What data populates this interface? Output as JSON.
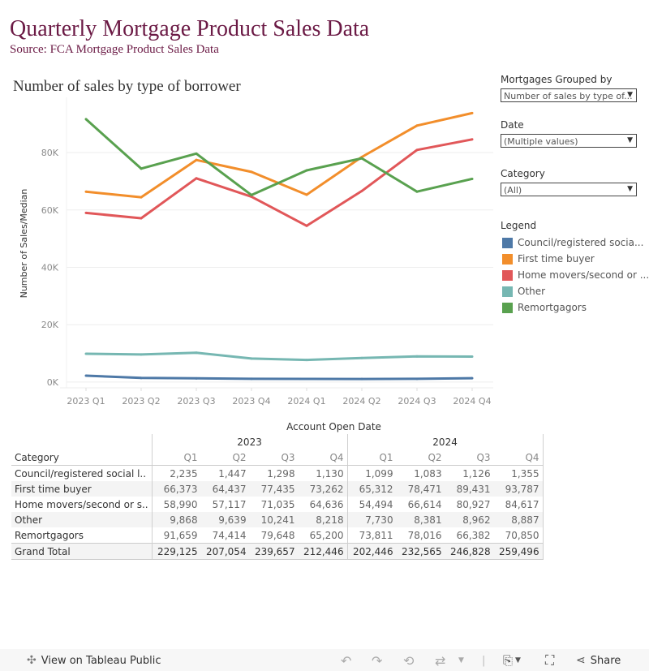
{
  "dashboard": {
    "title": "Quarterly Mortgage Product Sales Data",
    "subtitle": "Source: FCA Mortgage Product Sales Data",
    "chart_title": "Number of sales by type of borrower"
  },
  "controls": {
    "grouped_by": {
      "label": "Mortgages Grouped by",
      "value": "Number of sales by type of..."
    },
    "date": {
      "label": "Date",
      "value": "(Multiple values)"
    },
    "category": {
      "label": "Category",
      "value": "(All)"
    }
  },
  "legend": {
    "title": "Legend",
    "items": [
      {
        "label": "Council/registered socia...",
        "color": "#4e79a7"
      },
      {
        "label": "First time buyer",
        "color": "#f28e2b"
      },
      {
        "label": "Home movers/second or ...",
        "color": "#e15759"
      },
      {
        "label": "Other",
        "color": "#76b7b2"
      },
      {
        "label": "Remortgagors",
        "color": "#59a14f"
      }
    ]
  },
  "chart_data": {
    "type": "line",
    "title": "Number of sales by type of borrower",
    "xlabel": "",
    "ylabel": "Number of Sales/Median",
    "x": [
      "2023 Q1",
      "2023 Q2",
      "2023 Q3",
      "2023 Q4",
      "2024 Q1",
      "2024 Q2",
      "2024 Q3",
      "2024 Q4"
    ],
    "yticks": [
      0,
      20000,
      40000,
      60000,
      80000
    ],
    "ytick_labels": [
      "0K",
      "20K",
      "40K",
      "60K",
      "80K"
    ],
    "ylim": [
      -2000,
      97000
    ],
    "grid": true,
    "legend_position": "right",
    "series": [
      {
        "name": "Council/registered social landlord",
        "color": "#4e79a7",
        "values": [
          2235,
          1447,
          1298,
          1130,
          1099,
          1083,
          1126,
          1355
        ]
      },
      {
        "name": "First time buyer",
        "color": "#f28e2b",
        "values": [
          66373,
          64437,
          77435,
          73262,
          65312,
          78471,
          89431,
          93787
        ]
      },
      {
        "name": "Home movers/second or subsequent buyers",
        "color": "#e15759",
        "values": [
          58990,
          57117,
          71035,
          64636,
          54494,
          66614,
          80927,
          84617
        ]
      },
      {
        "name": "Other",
        "color": "#76b7b2",
        "values": [
          9868,
          9639,
          10241,
          8218,
          7730,
          8381,
          8962,
          8887
        ]
      },
      {
        "name": "Remortgagors",
        "color": "#59a14f",
        "values": [
          91659,
          74414,
          79648,
          65200,
          73811,
          78016,
          66382,
          70850
        ]
      }
    ]
  },
  "table": {
    "header": "Account Open Date",
    "category_header": "Category",
    "years": [
      "2023",
      "2024"
    ],
    "quarters": [
      "Q1",
      "Q2",
      "Q3",
      "Q4",
      "Q1",
      "Q2",
      "Q3",
      "Q4"
    ],
    "rows": [
      {
        "category": "Council/registered social l..",
        "values": [
          "2,235",
          "1,447",
          "1,298",
          "1,130",
          "1,099",
          "1,083",
          "1,126",
          "1,355"
        ]
      },
      {
        "category": "First time buyer",
        "values": [
          "66,373",
          "64,437",
          "77,435",
          "73,262",
          "65,312",
          "78,471",
          "89,431",
          "93,787"
        ]
      },
      {
        "category": "Home movers/second or s..",
        "values": [
          "58,990",
          "57,117",
          "71,035",
          "64,636",
          "54,494",
          "66,614",
          "80,927",
          "84,617"
        ]
      },
      {
        "category": "Other",
        "values": [
          "9,868",
          "9,639",
          "10,241",
          "8,218",
          "7,730",
          "8,381",
          "8,962",
          "8,887"
        ]
      },
      {
        "category": "Remortgagors",
        "values": [
          "91,659",
          "74,414",
          "79,648",
          "65,200",
          "73,811",
          "78,016",
          "66,382",
          "70,850"
        ]
      }
    ],
    "total": {
      "category": "Grand Total",
      "values": [
        "229,125",
        "207,054",
        "239,657",
        "212,446",
        "202,446",
        "232,565",
        "246,828",
        "259,496"
      ]
    }
  },
  "footer": {
    "view_on": "View on Tableau Public",
    "share": "Share"
  }
}
